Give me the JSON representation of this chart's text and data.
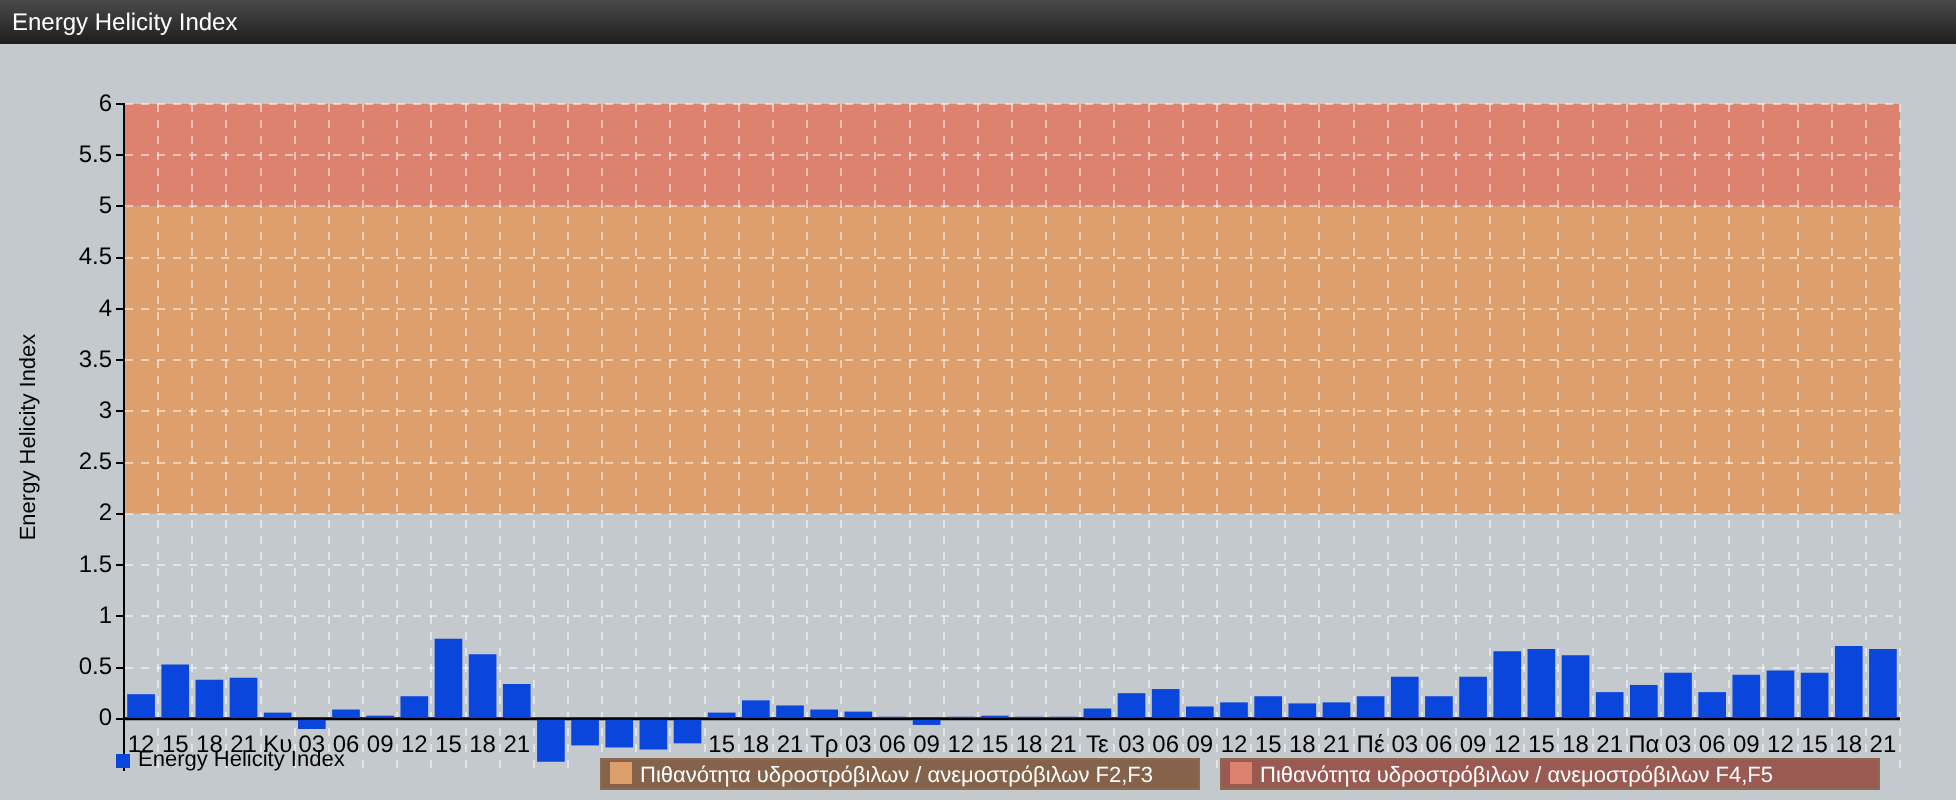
{
  "chart_data": {
    "type": "bar",
    "title": "Energy Helicity Index",
    "ylabel": "Energy Helicity Index",
    "categories": [
      "12",
      "15",
      "18",
      "21",
      "Κυ",
      "03",
      "06",
      "09",
      "12",
      "15",
      "18",
      "21",
      null,
      null,
      null,
      null,
      null,
      "15",
      "18",
      "21",
      "Τρ",
      "03",
      "06",
      "09",
      "12",
      "15",
      "18",
      "21",
      "Τε",
      "03",
      "06",
      "09",
      "12",
      "15",
      "18",
      "21",
      "Πέ",
      "03",
      "06",
      "09",
      "12",
      "15",
      "18",
      "21",
      "Πα",
      "03",
      "06",
      "09",
      "12",
      "15",
      "18",
      "21"
    ],
    "series": [
      {
        "name": "Energy Helicity Index",
        "color": "#0a46dc",
        "values": [
          0.24,
          0.53,
          0.38,
          0.4,
          0.06,
          -0.1,
          0.09,
          0.03,
          0.22,
          0.78,
          0.63,
          0.34,
          -0.42,
          -0.26,
          -0.28,
          -0.3,
          -0.24,
          0.06,
          0.18,
          0.13,
          0.09,
          0.07,
          0.02,
          -0.06,
          0.02,
          0.03,
          0.02,
          0.02,
          0.1,
          0.25,
          0.29,
          0.12,
          0.16,
          0.22,
          0.15,
          0.16,
          0.22,
          0.41,
          0.22,
          0.41,
          0.66,
          0.68,
          0.62,
          0.26,
          0.33,
          0.45,
          0.26,
          0.43,
          0.47,
          0.45,
          0.71,
          0.68
        ]
      }
    ],
    "ylim": [
      -0.5,
      6
    ],
    "yticks": [
      0,
      0.5,
      1,
      1.5,
      2,
      2.5,
      3,
      3.5,
      4,
      4.5,
      5,
      5.5,
      6
    ],
    "bands": [
      {
        "axis": "y",
        "from": 2,
        "to": 5,
        "label": "Πιθανότητα υδροστρόβιλων / ανεμοστρόβιλων F2,F3",
        "color": "#dd9f6c"
      },
      {
        "axis": "y",
        "from": 5,
        "to": 6,
        "label": "Πιθανότητα υδροστρόβιλων / ανεμοστρόβιλων F4,F5",
        "color": "#de8270"
      }
    ],
    "grid": true,
    "legend": "bottom left"
  }
}
